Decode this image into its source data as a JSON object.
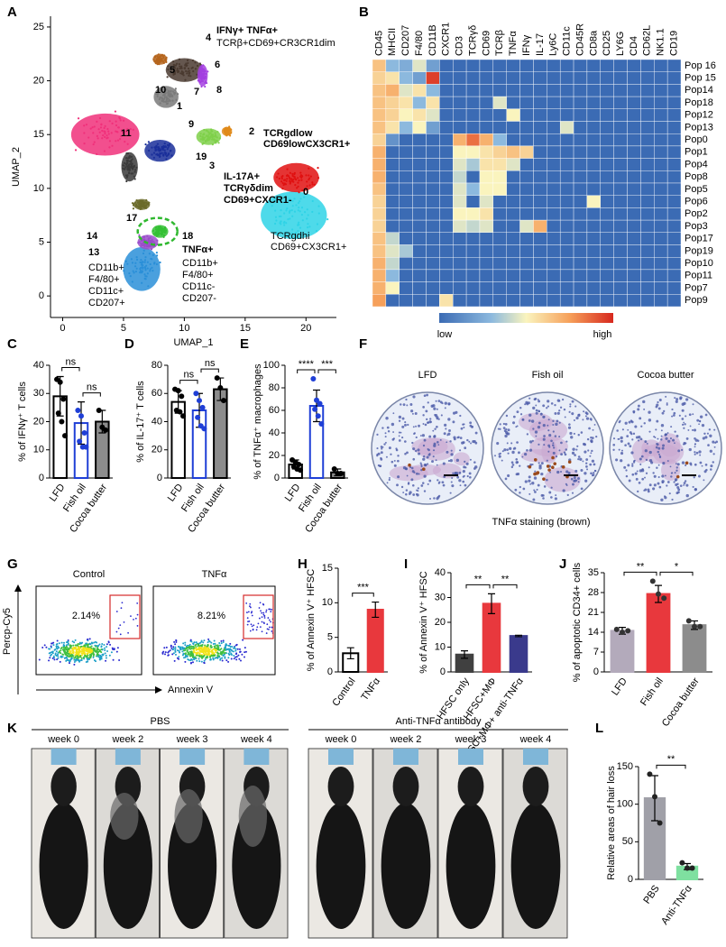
{
  "chart_data": [
    {
      "type": "umap",
      "panel": "A",
      "xlabel": "UMAP_1",
      "ylabel": "UMAP_2",
      "xlim": [
        -1,
        22.5
      ],
      "ylim": [
        -2,
        26
      ],
      "xticks": [
        0,
        5,
        10,
        15,
        20
      ],
      "yticks": [
        0,
        5,
        10,
        15,
        20,
        25
      ],
      "annotations": [
        {
          "text": "IFNγ+ TNFα+",
          "color": "#000000",
          "weight": "bold"
        },
        {
          "text": "TCRβ+CD69+CR3CR1dim",
          "color": "#000000",
          "weight": "normal"
        },
        {
          "text": "4",
          "color": "#000000",
          "weight": "bold"
        },
        {
          "text": "5",
          "color": "#b5651d",
          "weight": "bold"
        },
        {
          "text": "10",
          "color": "#000000",
          "weight": "bold"
        },
        {
          "text": "7",
          "color": "#000000",
          "weight": "bold"
        },
        {
          "text": "8",
          "color": "#8b2fc9",
          "weight": "bold"
        },
        {
          "text": "6",
          "color": "#8b2fc9",
          "weight": "bold"
        },
        {
          "text": "1",
          "color": "#000000",
          "weight": "bold"
        },
        {
          "text": "9",
          "color": "#000000",
          "weight": "bold"
        },
        {
          "text": "2",
          "color": "#e07b1a",
          "weight": "bold"
        },
        {
          "text": "11",
          "color": "#000000",
          "weight": "bold"
        },
        {
          "text": "19",
          "color": "#000000",
          "weight": "bold"
        },
        {
          "text": "3",
          "color": "#2fb82f",
          "weight": "bold"
        },
        {
          "text": "IL-17A+",
          "color": "#2fb82f",
          "weight": "bold"
        },
        {
          "text": "TCRγδdim",
          "color": "#2fb82f",
          "weight": "bold"
        },
        {
          "text": "CD69+CXCR1-",
          "color": "#2fb82f",
          "weight": "bold"
        },
        {
          "text": "TCRgdlow",
          "color": "#e00000",
          "weight": "bold"
        },
        {
          "text": "CD69lowCX3CR1+",
          "color": "#e00000",
          "weight": "bold"
        },
        {
          "text": "0",
          "color": "#000000",
          "weight": "bold"
        },
        {
          "text": "TCRgdhi",
          "color": "#1cb7c6",
          "weight": "normal"
        },
        {
          "text": "CD69+CX3CR1+",
          "color": "#1cb7c6",
          "weight": "normal"
        },
        {
          "text": "17",
          "color": "#000000",
          "weight": "bold"
        },
        {
          "text": "14",
          "color": "#8b2fc9",
          "weight": "bold"
        },
        {
          "text": "18",
          "color": "#2fb82f",
          "weight": "bold"
        },
        {
          "text": "TNFα+",
          "color": "#2fb82f",
          "weight": "bold"
        },
        {
          "text": "CD11b+",
          "color": "#2fb82f",
          "weight": "normal"
        },
        {
          "text": "F4/80+",
          "color": "#2fb82f",
          "weight": "normal"
        },
        {
          "text": "CD11c-",
          "color": "#2fb82f",
          "weight": "normal"
        },
        {
          "text": "CD207-",
          "color": "#2fb82f",
          "weight": "normal"
        },
        {
          "text": "13",
          "color": "#1f8fd6",
          "weight": "bold"
        },
        {
          "text": "CD11b+",
          "color": "#1f8fd6",
          "weight": "normal"
        },
        {
          "text": "F4/80+",
          "color": "#1f8fd6",
          "weight": "normal"
        },
        {
          "text": "CD11c+",
          "color": "#1f8fd6",
          "weight": "normal"
        },
        {
          "text": "CD207+",
          "color": "#1f8fd6",
          "weight": "normal"
        }
      ]
    },
    {
      "type": "heatmap",
      "panel": "B",
      "columns": [
        "CD45",
        "MHCII",
        "CD207",
        "F4/80",
        "CD11B",
        "CXCR1",
        "CD3",
        "TCRγδ",
        "CD69",
        "TCRβ",
        "TNFα",
        "IFNγ",
        "IL-17",
        "Ly6C",
        "CD11c",
        "CD45R",
        "CD8a",
        "CD25",
        "LY6G",
        "CD4",
        "CD62L",
        "NK1.1",
        "CD19"
      ],
      "rows": [
        "Pop 16",
        "Pop 15",
        "Pop14",
        "Pop18",
        "Pop12",
        "Pop13",
        "Pop0",
        "Pop1",
        "Pop4",
        "Pop8",
        "Pop5",
        "Pop6",
        "Pop2",
        "Pop3",
        "Pop17",
        "Pop19",
        "Pop10",
        "Pop11",
        "Pop7",
        "Pop9"
      ],
      "values": [
        [
          0.65,
          0.3,
          0.25,
          0.45,
          0.2,
          0,
          0,
          0,
          0,
          0,
          0,
          0,
          0,
          0,
          0,
          0,
          0,
          0,
          0,
          0,
          0,
          0,
          0
        ],
        [
          0.6,
          0.55,
          0.3,
          0.2,
          0.95,
          0,
          0,
          0,
          0,
          0,
          0,
          0,
          0,
          0,
          0,
          0,
          0,
          0,
          0,
          0,
          0,
          0,
          0
        ],
        [
          0.65,
          0.7,
          0.45,
          0.55,
          0.3,
          0,
          0,
          0,
          0,
          0,
          0,
          0,
          0,
          0,
          0,
          0,
          0,
          0,
          0,
          0,
          0,
          0,
          0
        ],
        [
          0.65,
          0.6,
          0.55,
          0.3,
          0.55,
          0,
          0,
          0,
          0,
          0.45,
          0,
          0,
          0,
          0,
          0,
          0,
          0,
          0,
          0,
          0,
          0,
          0,
          0
        ],
        [
          0.65,
          0.6,
          0.5,
          0.55,
          0.45,
          0,
          0,
          0,
          0,
          0,
          0.5,
          0,
          0,
          0,
          0,
          0,
          0,
          0,
          0,
          0,
          0,
          0,
          0
        ],
        [
          0.65,
          0.55,
          0.3,
          0.5,
          0.2,
          0,
          0,
          0,
          0,
          0,
          0,
          0,
          0,
          0,
          0.45,
          0,
          0,
          0,
          0,
          0,
          0,
          0,
          0
        ],
        [
          0.6,
          0.15,
          0,
          0,
          0,
          0,
          0.7,
          0.85,
          0.7,
          0.3,
          0,
          0,
          0,
          0,
          0,
          0,
          0,
          0,
          0,
          0,
          0,
          0,
          0
        ],
        [
          0.7,
          0,
          0,
          0,
          0,
          0,
          0.5,
          0.5,
          0.55,
          0.6,
          0.65,
          0.6,
          0,
          0,
          0,
          0,
          0,
          0,
          0,
          0,
          0,
          0,
          0
        ],
        [
          0.7,
          0,
          0,
          0,
          0,
          0,
          0.45,
          0.35,
          0.55,
          0.55,
          0.45,
          0,
          0,
          0,
          0,
          0,
          0,
          0,
          0,
          0,
          0,
          0,
          0
        ],
        [
          0.7,
          0,
          0,
          0,
          0,
          0,
          0.4,
          0,
          0.5,
          0.5,
          0,
          0,
          0,
          0,
          0,
          0,
          0,
          0,
          0,
          0,
          0,
          0,
          0
        ],
        [
          0.65,
          0,
          0,
          0,
          0,
          0,
          0.45,
          0.3,
          0.5,
          0.5,
          0,
          0,
          0,
          0,
          0,
          0,
          0,
          0,
          0,
          0,
          0,
          0,
          0
        ],
        [
          0.6,
          0,
          0,
          0,
          0,
          0,
          0.45,
          0,
          0.45,
          0,
          0,
          0,
          0,
          0,
          0,
          0,
          0.5,
          0,
          0,
          0,
          0,
          0,
          0
        ],
        [
          0.6,
          0,
          0,
          0,
          0,
          0,
          0.5,
          0.5,
          0.55,
          0,
          0,
          0,
          0,
          0,
          0,
          0,
          0,
          0,
          0,
          0,
          0,
          0,
          0
        ],
        [
          0.6,
          0,
          0,
          0,
          0,
          0,
          0.45,
          0.4,
          0.45,
          0,
          0,
          0.45,
          0.7,
          0,
          0,
          0,
          0,
          0,
          0,
          0,
          0,
          0,
          0
        ],
        [
          0.65,
          0.4,
          0,
          0,
          0,
          0,
          0,
          0,
          0,
          0,
          0,
          0,
          0,
          0,
          0,
          0,
          0,
          0,
          0,
          0,
          0,
          0,
          0
        ],
        [
          0.65,
          0.45,
          0.35,
          0,
          0,
          0,
          0,
          0,
          0,
          0,
          0,
          0,
          0,
          0,
          0,
          0,
          0,
          0,
          0,
          0,
          0,
          0,
          0
        ],
        [
          0.7,
          0.4,
          0,
          0,
          0,
          0,
          0,
          0,
          0,
          0,
          0,
          0,
          0,
          0,
          0,
          0,
          0,
          0,
          0,
          0,
          0,
          0,
          0
        ],
        [
          0.7,
          0.3,
          0,
          0,
          0,
          0,
          0,
          0,
          0,
          0,
          0,
          0,
          0,
          0,
          0,
          0,
          0,
          0,
          0,
          0,
          0,
          0,
          0
        ],
        [
          0.7,
          0.5,
          0,
          0,
          0,
          0,
          0,
          0,
          0,
          0,
          0,
          0,
          0,
          0,
          0,
          0,
          0,
          0,
          0,
          0,
          0,
          0,
          0
        ],
        [
          0.75,
          0,
          0,
          0,
          0,
          0.55,
          0,
          0,
          0,
          0,
          0,
          0,
          0,
          0,
          0,
          0,
          0,
          0,
          0,
          0,
          0,
          0,
          0
        ]
      ],
      "colorbar_labels": [
        "low",
        "high"
      ]
    },
    {
      "type": "bar",
      "panel": "C",
      "ylabel": "% of IFNγ⁺ T cells",
      "categories": [
        "LFD",
        "Fish oil",
        "Cocoa butter"
      ],
      "values": [
        29,
        19.5,
        20
      ],
      "errors": [
        7,
        7.5,
        4
      ],
      "points": [
        [
          35,
          34,
          28,
          23,
          20,
          15
        ],
        [
          24,
          22,
          16,
          13,
          11,
          11
        ],
        [
          24,
          18,
          17
        ]
      ],
      "colors": [
        "#ffffff",
        "#ffffff",
        "#8c8c8c"
      ],
      "edge_colors": [
        "#000000",
        "#1f3fd6",
        "#000000"
      ],
      "point_colors": [
        "#000000",
        "#1f3fd6",
        "#000000"
      ],
      "ylim": [
        0,
        40
      ],
      "yticks": [
        0,
        10,
        20,
        30,
        40
      ],
      "significance": [
        "ns",
        "ns"
      ]
    },
    {
      "type": "bar",
      "panel": "D",
      "ylabel": "% of IL-17⁺ T cells",
      "categories": [
        "LFD",
        "Fish oil",
        "Cocoa butter"
      ],
      "values": [
        54,
        48,
        63
      ],
      "errors": [
        8,
        12,
        8
      ],
      "points": [
        [
          63,
          62,
          58,
          48,
          47,
          44
        ],
        [
          60,
          55,
          50,
          43,
          37,
          35
        ],
        [
          71,
          64,
          55
        ]
      ],
      "colors": [
        "#ffffff",
        "#ffffff",
        "#8c8c8c"
      ],
      "edge_colors": [
        "#000000",
        "#1f3fd6",
        "#000000"
      ],
      "point_colors": [
        "#000000",
        "#1f3fd6",
        "#000000"
      ],
      "ylim": [
        0,
        80
      ],
      "yticks": [
        0,
        20,
        40,
        60,
        80
      ],
      "significance": [
        "ns",
        "ns"
      ]
    },
    {
      "type": "bar",
      "panel": "E",
      "ylabel": "% of TNFα⁺ macrophages",
      "categories": [
        "LFD",
        "Fish oil",
        "Cocoa butter"
      ],
      "values": [
        12,
        64,
        5
      ],
      "errors": [
        4,
        14,
        3
      ],
      "points": [
        [
          16,
          14,
          12,
          10,
          8,
          7
        ],
        [
          88,
          69,
          66,
          61,
          55,
          48
        ],
        [
          8,
          4,
          4
        ]
      ],
      "colors": [
        "#ffffff",
        "#ffffff",
        "#8c8c8c"
      ],
      "edge_colors": [
        "#000000",
        "#1f3fd6",
        "#000000"
      ],
      "point_colors": [
        "#000000",
        "#1f3fd6",
        "#000000"
      ],
      "ylim": [
        0,
        100
      ],
      "yticks": [
        0,
        20,
        40,
        60,
        80,
        100
      ],
      "significance": [
        "****",
        "***"
      ]
    },
    {
      "type": "bar",
      "panel": "H",
      "ylabel": "% of Annexin V⁺ HFSC",
      "categories": [
        "Control",
        "TNFα"
      ],
      "values": [
        2.7,
        9
      ],
      "errors": [
        0.8,
        1.1
      ],
      "colors": [
        "#ffffff",
        "#e8383d"
      ],
      "edge_colors": [
        "#000000",
        "#e8383d"
      ],
      "ylim": [
        0,
        15
      ],
      "yticks": [
        0,
        5,
        10,
        15
      ],
      "significance": [
        "***"
      ]
    },
    {
      "type": "bar",
      "panel": "I",
      "ylabel": "% of Annexin V⁺ HFSC",
      "categories": [
        "HFSC only",
        "HFSC+MΦ",
        "HFSC+MΦ+ anti-TNFα"
      ],
      "values": [
        7,
        27.5,
        14.5
      ],
      "errors": [
        1.5,
        4,
        0.3
      ],
      "colors": [
        "#404040",
        "#e8383d",
        "#3a3a8c"
      ],
      "edge_colors": [
        "#404040",
        "#e8383d",
        "#3a3a8c"
      ],
      "ylim": [
        0,
        40
      ],
      "yticks": [
        0,
        10,
        20,
        30,
        40
      ],
      "significance": [
        "**",
        "**"
      ]
    },
    {
      "type": "bar",
      "panel": "J",
      "ylabel": "% of apoptotic CD34+ cells",
      "categories": [
        "LFD",
        "Fish oil",
        "Cocoa butter"
      ],
      "values": [
        14.5,
        27.5,
        16.5
      ],
      "errors": [
        1.2,
        3,
        1.5
      ],
      "points": [
        [
          15,
          14,
          14.5
        ],
        [
          32,
          27.5,
          26
        ],
        [
          18,
          16,
          16
        ]
      ],
      "colors": [
        "#b3aabb",
        "#e8383d",
        "#8c8c8c"
      ],
      "edge_colors": [
        "#b3aabb",
        "#e8383d",
        "#8c8c8c"
      ],
      "point_colors": [
        "#333333",
        "#333333",
        "#333333"
      ],
      "ylim": [
        0,
        35
      ],
      "yticks": [
        0,
        7,
        14,
        21,
        28,
        35
      ],
      "significance": [
        "**",
        "*"
      ]
    },
    {
      "type": "bar",
      "panel": "L",
      "ylabel": "Relative areas of hair loss",
      "categories": [
        "PBS",
        "Anti-TNFα"
      ],
      "values": [
        108,
        17
      ],
      "errors": [
        30,
        4
      ],
      "points": [
        [
          140,
          110,
          75
        ],
        [
          22,
          15,
          15
        ]
      ],
      "colors": [
        "#a0a0a8",
        "#7fe0a0"
      ],
      "edge_colors": [
        "#a0a0a8",
        "#7fe0a0"
      ],
      "point_colors": [
        "#222222",
        "#222222"
      ],
      "ylim": [
        0,
        150
      ],
      "yticks": [
        0,
        50,
        100,
        150
      ],
      "significance": [
        "**"
      ]
    }
  ],
  "panels": {
    "F": {
      "letter": "F",
      "titles": [
        "LFD",
        "Fish oil",
        "Cocoa butter"
      ],
      "caption": "TNFα staining (brown)"
    },
    "G": {
      "letter": "G",
      "titles": [
        "Control",
        "TNFα"
      ],
      "gate_labels": [
        "2.14%",
        "8.21%"
      ],
      "ylabel": "Percp-Cy5",
      "xlabel": "Annexin V"
    },
    "K": {
      "letter": "K",
      "groups": [
        {
          "name": "PBS",
          "weeks": [
            "week 0",
            "week 2",
            "week 3",
            "week 4"
          ]
        },
        {
          "name": "Anti-TNFα antibody",
          "weeks": [
            "week 0",
            "week 2",
            "week 3",
            "week 4"
          ]
        }
      ]
    }
  }
}
